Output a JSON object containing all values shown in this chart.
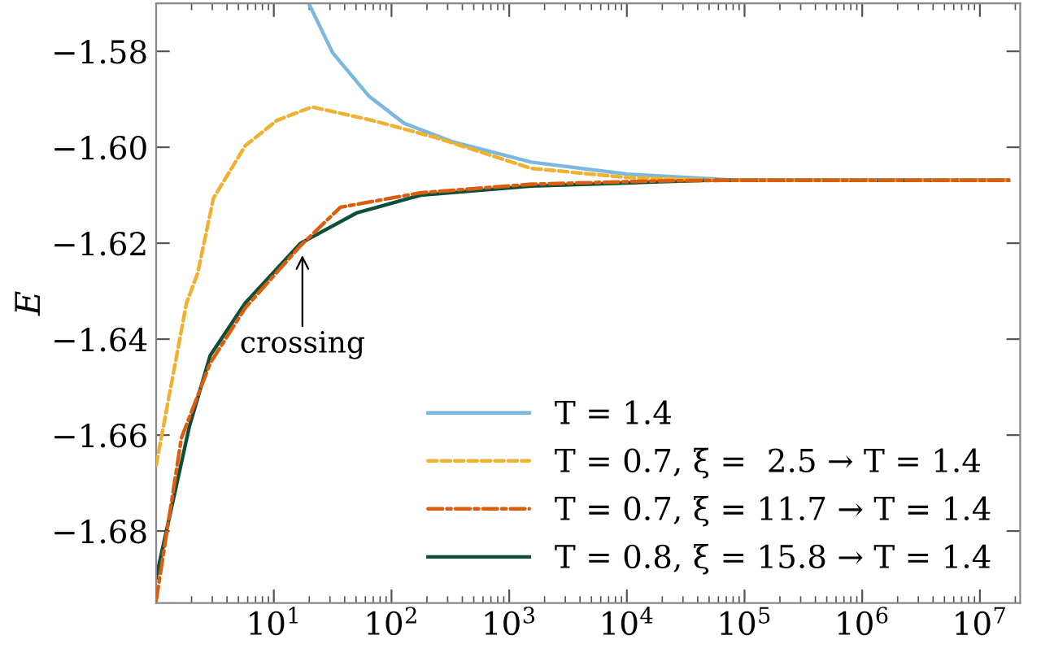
{
  "chart_data": {
    "type": "line",
    "ylabel": "E",
    "log": "x",
    "xlim": [
      1,
      22000000.0
    ],
    "xticks": [
      {
        "value": 10,
        "label": "10$^{1}$"
      },
      {
        "value": 100,
        "label": "10$^{2}$"
      },
      {
        "value": 1000,
        "label": "10$^{3}$"
      },
      {
        "value": 10000,
        "label": "10$^{4}$"
      },
      {
        "value": 100000,
        "label": "10$^{5}$"
      },
      {
        "value": 1000000,
        "label": "10$^{6}$"
      },
      {
        "value": 10000000,
        "label": "10$^{7}$"
      }
    ],
    "ylim": [
      -1.695,
      -1.57
    ],
    "yticks": [
      {
        "value": -1.68,
        "label": "−1.68"
      },
      {
        "value": -1.66,
        "label": "−1.66"
      },
      {
        "value": -1.64,
        "label": "−1.64"
      },
      {
        "value": -1.62,
        "label": "−1.62"
      },
      {
        "value": -1.6,
        "label": "−1.60"
      },
      {
        "value": -1.58,
        "label": "−1.58"
      }
    ],
    "grid": false,
    "legend": "bottom right",
    "marker": "none",
    "series": [
      {
        "name": "T = 1.4",
        "color": "#7ab8de",
        "line_style": "solid",
        "x": [
          19.8,
          31.6,
          64.6,
          128,
          326,
          1540,
          10000,
          88300,
          17500000.0
        ],
        "values": [
          -1.57,
          -1.5803,
          -1.5894,
          -1.595,
          -1.5988,
          -1.6031,
          -1.6056,
          -1.6069,
          -1.6069
        ]
      },
      {
        "name": "T = 0.7, ξ =  2.5 → T = 1.4",
        "color": "#f0b030",
        "line_style": "dashed",
        "x": [
          1,
          1.81,
          2.25,
          3.07,
          5.71,
          10.6,
          21.1,
          68.7,
          239,
          1540,
          10000,
          64900,
          17500000.0
        ],
        "values": [
          -1.6663,
          -1.6325,
          -1.6263,
          -1.6106,
          -1.5997,
          -1.5944,
          -1.5916,
          -1.5944,
          -1.598,
          -1.6044,
          -1.6063,
          -1.6069,
          -1.6069
        ]
      },
      {
        "name": "T = 0.7, ξ = 11.7 → T = 1.4",
        "color": "#d95f0e",
        "line_style": "dashdot",
        "x": [
          1,
          1.64,
          2.88,
          5.71,
          16.9,
          36.8,
          176,
          1540,
          18900,
          64900,
          17500000.0
        ],
        "values": [
          -1.6945,
          -1.6606,
          -1.645,
          -1.6335,
          -1.6205,
          -1.6125,
          -1.6095,
          -1.6077,
          -1.607,
          -1.6069,
          -1.6069
        ]
      },
      {
        "name": "T = 0.8, ξ = 15.8 → T = 1.4",
        "color": "#0b4f3c",
        "line_style": "solid",
        "x": [
          1,
          1.92,
          2.88,
          5.71,
          16.9,
          50.4,
          176,
          1540,
          18900,
          47400,
          17500000.0
        ],
        "values": [
          -1.6897,
          -1.6581,
          -1.6434,
          -1.6325,
          -1.62,
          -1.6137,
          -1.61,
          -1.6081,
          -1.6072,
          -1.6069,
          -1.6069
        ]
      }
    ],
    "annotations": [
      {
        "text": "crossing",
        "x": 17.5,
        "y": -1.6225
      }
    ]
  }
}
